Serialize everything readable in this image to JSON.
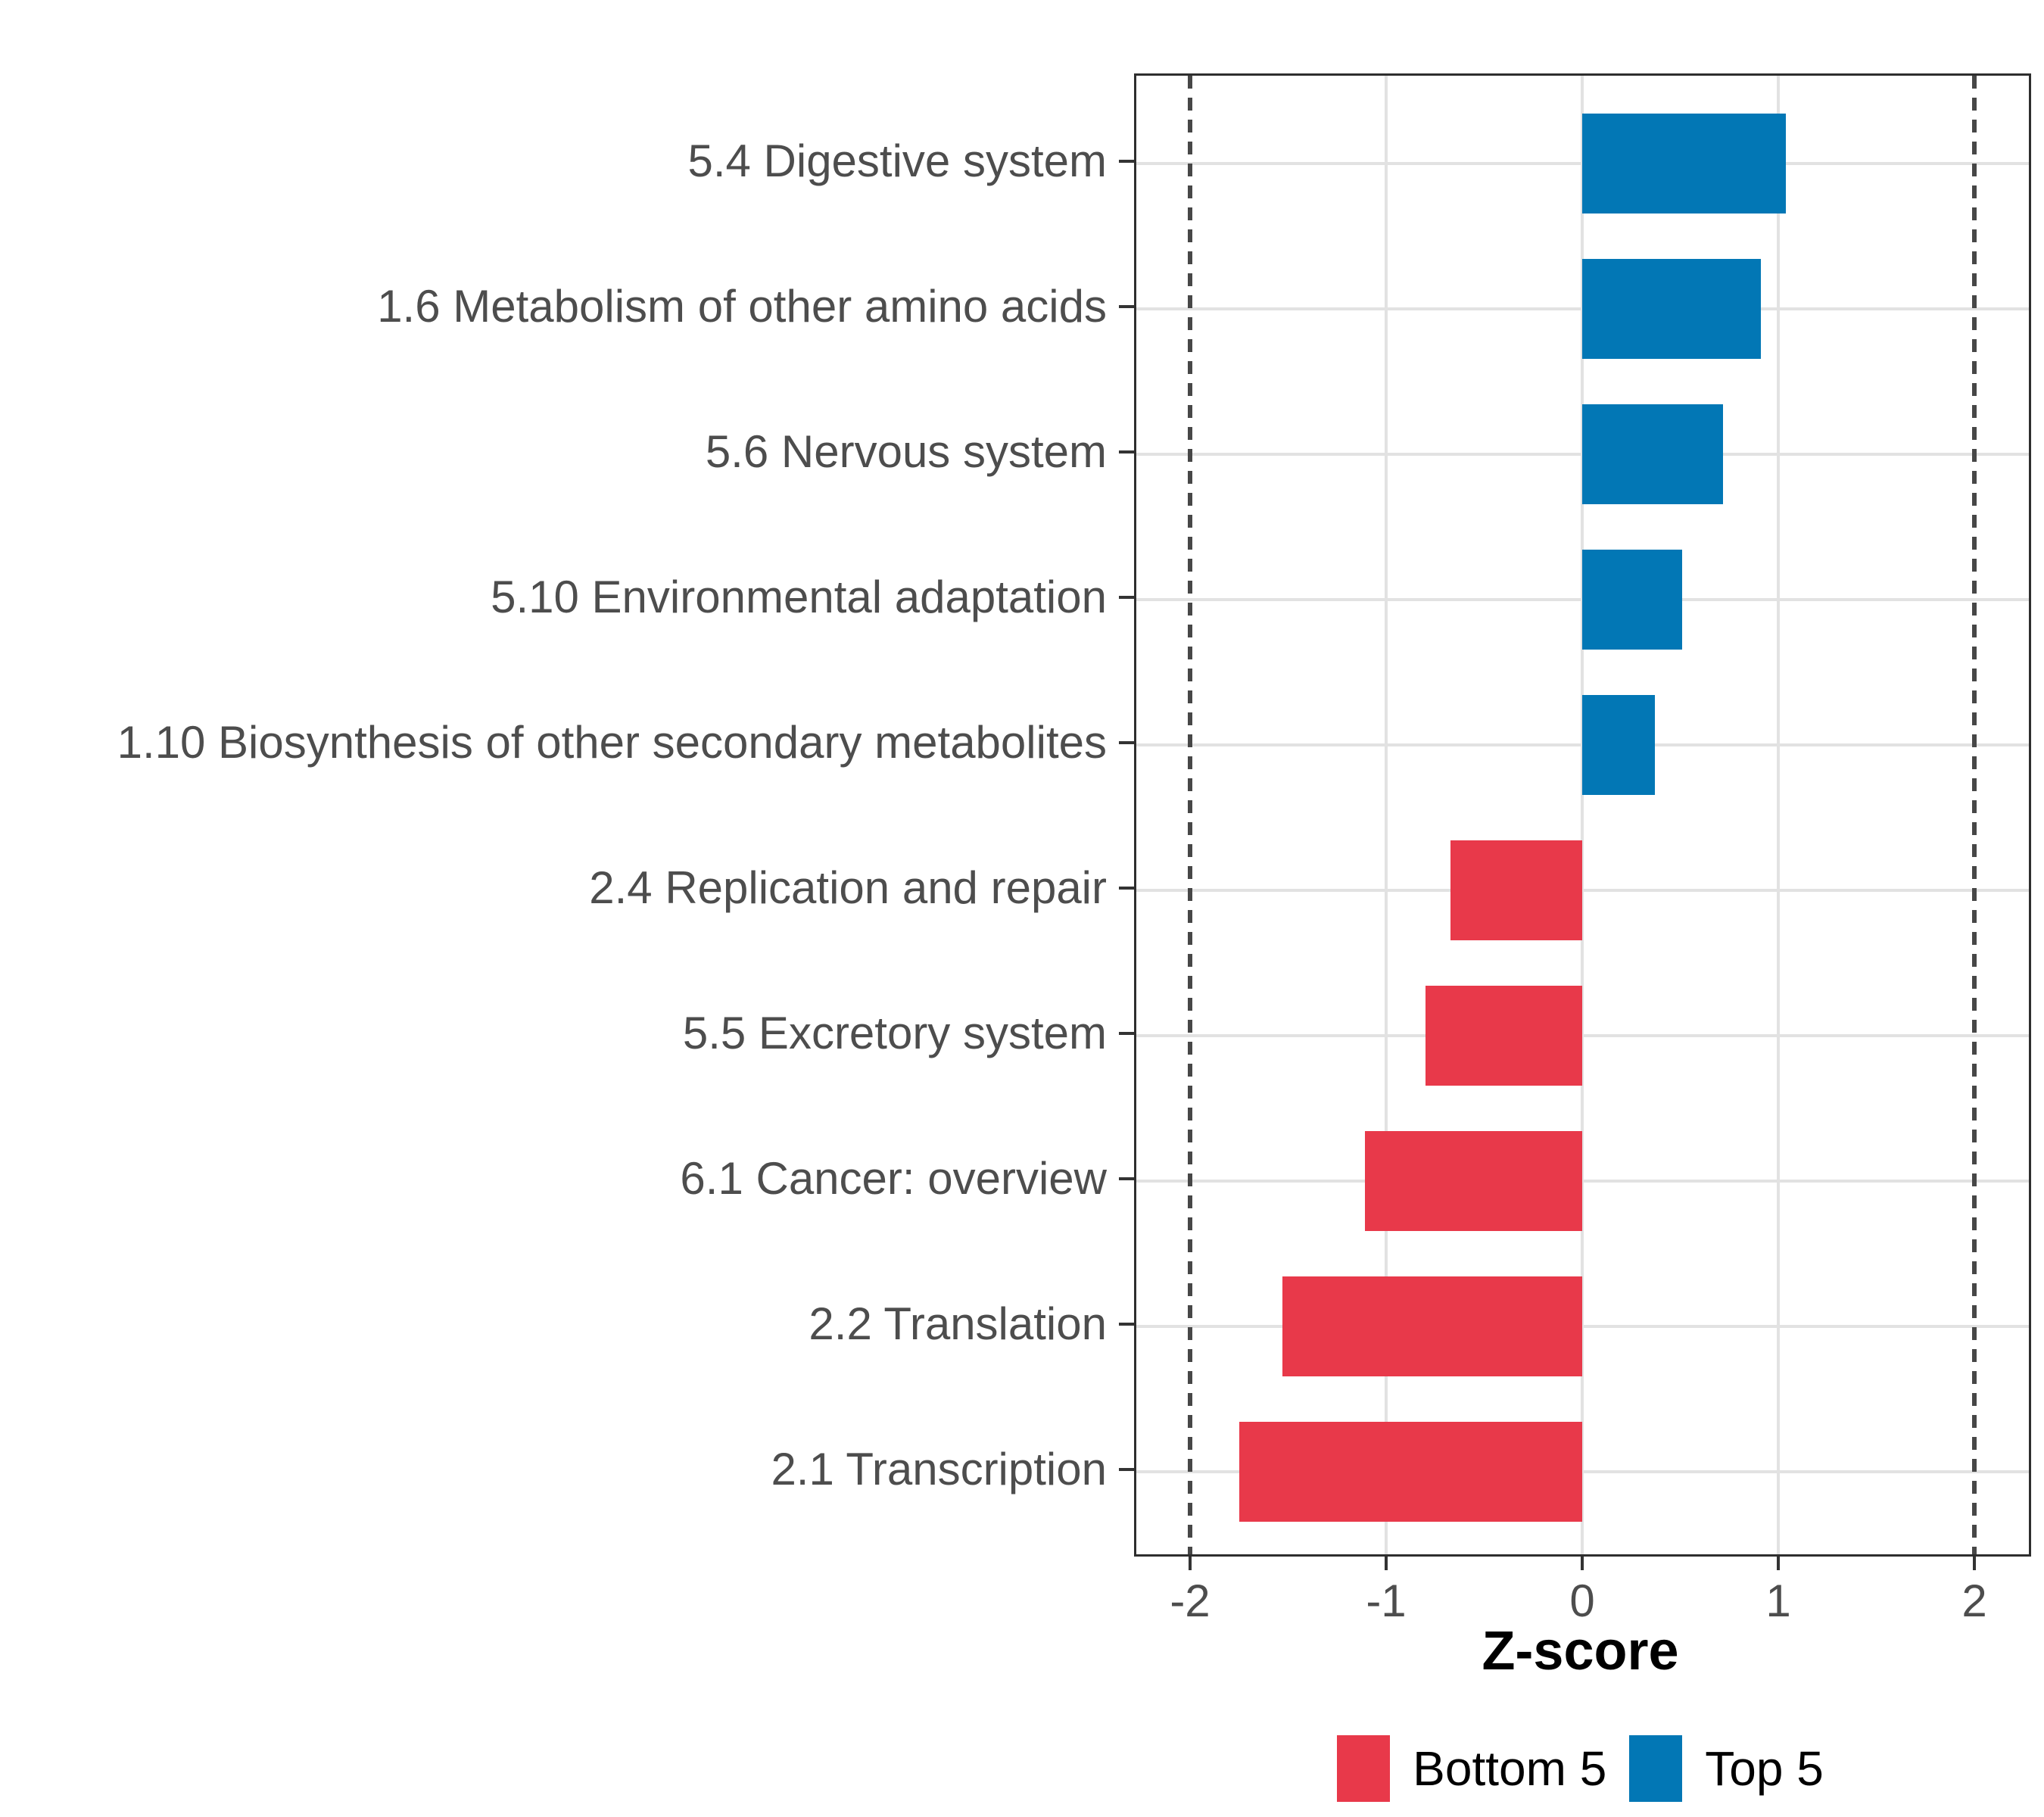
{
  "chart_data": {
    "type": "bar",
    "orientation": "horizontal",
    "xlabel": "Z-score",
    "xlim": [
      -2.26,
      2.26
    ],
    "x_ticks": [
      -2,
      -1,
      0,
      1,
      2
    ],
    "reference_lines_dashed": [
      -2,
      2
    ],
    "grid": "major",
    "categories": [
      "5.4 Digestive system",
      "1.6 Metabolism of other amino acids",
      "5.6 Nervous system",
      "5.10 Environmental adaptation",
      "1.10 Biosynthesis of other secondary metabolites",
      "2.4 Replication and repair",
      "5.5 Excretory system",
      "6.1 Cancer: overview",
      "2.2 Translation",
      "2.1 Transcription"
    ],
    "values": [
      1.04,
      0.91,
      0.72,
      0.51,
      0.37,
      -0.67,
      -0.8,
      -1.11,
      -1.53,
      -1.75
    ],
    "groups": [
      "Top 5",
      "Top 5",
      "Top 5",
      "Top 5",
      "Top 5",
      "Bottom 5",
      "Bottom 5",
      "Bottom 5",
      "Bottom 5",
      "Bottom 5"
    ],
    "legend": [
      {
        "label": "Bottom 5",
        "color": "#e8394a"
      },
      {
        "label": "Top 5",
        "color": "#0277b5"
      }
    ],
    "colors": {
      "Bottom 5": "#e8394a",
      "Top 5": "#0277b5"
    },
    "legend_position": "bottom"
  }
}
